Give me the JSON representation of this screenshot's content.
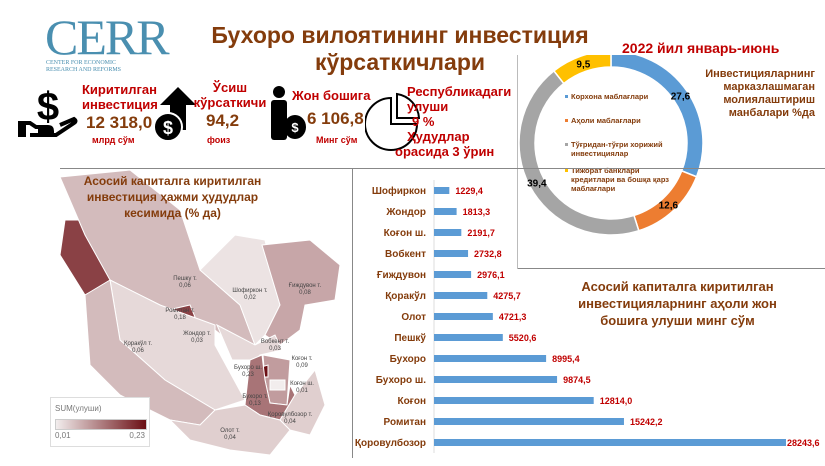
{
  "logo": {
    "text": "CERR",
    "subtitle": "CENTER FOR ECONOMIC RESEARCH AND REFORMS"
  },
  "header": {
    "title_line1": "Бухоро вилоятининг инвестиция",
    "title_line2": "кўрсаткичлари",
    "period": "2022 йил январь-июнь"
  },
  "kpis": [
    {
      "label_line1": "Киритилган",
      "label_line2": "инвестиция",
      "value": "12 318,0",
      "unit": "млрд сўм",
      "icon": "hand-dollar-icon"
    },
    {
      "label_line1": "Ўсиш",
      "label_line2": "кўрсаткичи",
      "value": "94,2",
      "unit": "фоиз",
      "icon": "growth-arrow-dollar-icon"
    },
    {
      "label_line1": "Жон бошига",
      "value": "6 106,8",
      "unit": "Минг сўм",
      "icon": "person-money-bag-icon"
    },
    {
      "label_line1": "Республикадаги",
      "label_line2": "улуши",
      "value": "9 %",
      "label_line3": "Ҳудудлар",
      "label_line4": "орасида 3 ўрин",
      "icon": "pie-chart-icon"
    }
  ],
  "chart_data": [
    {
      "type": "pie",
      "title": "Инвестицияларнинг марказлашмаган молиялаштириш манбалари %да",
      "categories": [
        "Корхона маблағлари",
        "Аҳоли маблағлари",
        "Тўғридан-тўғри хорижий инвестициялар",
        "Тижорат банклари кредитлари ва бошқа қарз маблағлари"
      ],
      "values": [
        27.6,
        12.6,
        39.4,
        9.5
      ],
      "labels": [
        "27,6",
        "12,6",
        "39,4",
        "9,5"
      ],
      "colors": [
        "#5b9bd5",
        "#ed7d31",
        "#a5a5a5",
        "#ffc000"
      ],
      "legend": "center"
    },
    {
      "type": "bar",
      "orientation": "horizontal",
      "title": "Асосий капиталга киритилган инвестицияларнинг аҳоли жон бошига улуши минг сўм",
      "categories": [
        "Шофиркон",
        "Жондор",
        "Коғон ш.",
        "Вобкент",
        "Ғиждувон",
        "Қоракўл",
        "Олот",
        "Пешкў",
        "Бухоро",
        "Бухоро ш.",
        "Коғон",
        "Ромитан",
        "Қоровулбозор"
      ],
      "values": [
        1229.4,
        1813.3,
        2191.7,
        2732.8,
        2976.1,
        4275.7,
        4721.3,
        5520.6,
        8995.4,
        9874.5,
        12814.0,
        15242.2,
        28243.6
      ],
      "labels": [
        "1229,4",
        "1813,3",
        "2191,7",
        "2732,8",
        "2976,1",
        "4275,7",
        "4721,3",
        "5520,6",
        "8995,4",
        "9874,5",
        "12814,0",
        "15242,2",
        "28243,6"
      ],
      "color": "#5b9bd5",
      "label_color": "#c00000"
    },
    {
      "type": "heatmap",
      "subtype": "choropleth",
      "title": "Асосий капиталга киритилган инвестиция ҳажми ҳудудлар кесимида (% да)",
      "legend_title": "SUM(улуши)",
      "range": [
        0.01,
        0.23
      ],
      "range_labels": [
        "0,01",
        "0,23"
      ],
      "color_low": "#f2eded",
      "color_high": "#6b0f14",
      "regions": [
        {
          "name": "Пешку т.",
          "value": 0.06,
          "label": "0,06"
        },
        {
          "name": "Шофиркон т.",
          "value": 0.02,
          "label": "0,02"
        },
        {
          "name": "Ғиждувон т.",
          "value": 0.08,
          "label": "0,08"
        },
        {
          "name": "Ромитан т.",
          "value": 0.18,
          "label": "0,18"
        },
        {
          "name": "Жондор т.",
          "value": 0.03,
          "label": "0,03"
        },
        {
          "name": "Қоракўл т.",
          "value": 0.06,
          "label": "0,06"
        },
        {
          "name": "Вобкент т.",
          "value": 0.03,
          "label": "0,03"
        },
        {
          "name": "Коғон т.",
          "value": 0.09,
          "label": "0,09"
        },
        {
          "name": "Бухоро ш.",
          "value": 0.23,
          "label": "0,23"
        },
        {
          "name": "Коғон ш.",
          "value": 0.01,
          "label": "0,01"
        },
        {
          "name": "Бухоро т.",
          "value": 0.13,
          "label": "0,13"
        },
        {
          "name": "Қоровулбозор т.",
          "value": 0.04,
          "label": "0,04"
        },
        {
          "name": "Олот т.",
          "value": 0.04,
          "label": "0,04"
        }
      ]
    }
  ]
}
